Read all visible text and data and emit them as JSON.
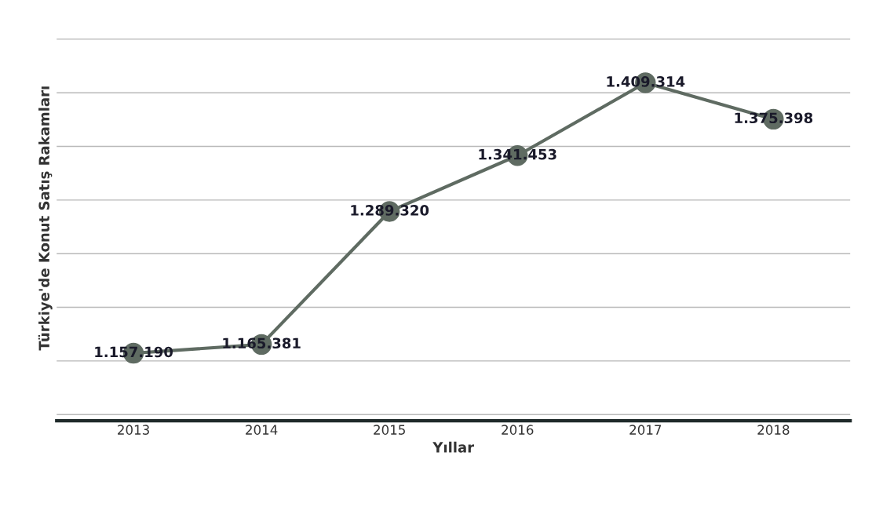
{
  "chart_data": {
    "type": "line",
    "xlabel": "Yıllar",
    "ylabel": "Türkiye'de Konut Satış Rakamları",
    "categories": [
      "2013",
      "2014",
      "2015",
      "2016",
      "2017",
      "2018"
    ],
    "series": [
      {
        "color": "#5f6b62",
        "values": [
          1157190,
          1165381,
          1289320,
          1341453,
          1409314,
          1375398
        ],
        "value_labels": [
          "1.157.190",
          "1.165.381",
          "1.289.320",
          "1.341.453",
          "1.409.314",
          "1.375.398"
        ]
      }
    ],
    "tick_labels": "x",
    "grid": "y",
    "marker": "circle",
    "line_style": "solid",
    "legend": false
  }
}
